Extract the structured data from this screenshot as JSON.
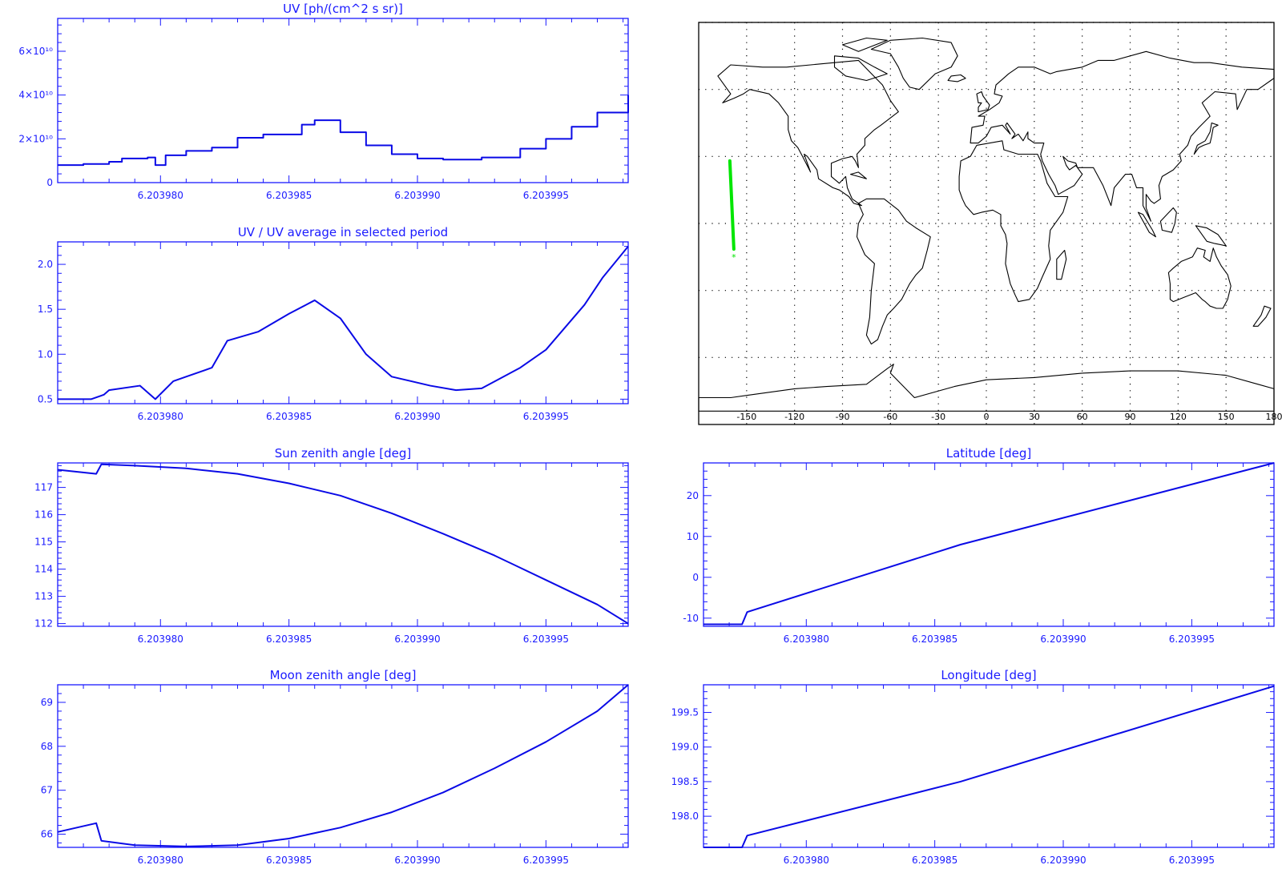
{
  "colors": {
    "axis": "#1a1aff",
    "line": "#0a0ae6",
    "track": "#00e600",
    "map": "#000000"
  },
  "x_ticks": [
    "6.203980",
    "6.203985",
    "6.203990",
    "6.203995"
  ],
  "x_tick_values": [
    6.20398,
    6.203985,
    6.20399,
    6.203995
  ],
  "chart_data": [
    {
      "id": "uv",
      "type": "line",
      "step": true,
      "title": "UV [ph/(cm^2 s sr)]",
      "xlim": [
        6.203976,
        6.2039982
      ],
      "ylim": [
        0,
        75000000000.0
      ],
      "y_ticks": [
        0,
        20000000000.0,
        40000000000.0,
        60000000000.0
      ],
      "y_tick_labels": [
        "0",
        "2×10¹⁰",
        "4×10¹⁰",
        "6×10¹⁰"
      ],
      "series": [
        {
          "x": [
            6.203976,
            6.203977,
            6.203978,
            6.2039785,
            6.2039795,
            6.2039798,
            6.2039802,
            6.203981,
            6.203982,
            6.203983,
            6.203984,
            6.2039855,
            6.203986,
            6.203987,
            6.203988,
            6.203989,
            6.20399,
            6.203991,
            6.2039925,
            6.203994,
            6.203995,
            6.203996,
            6.203997,
            6.2039982
          ],
          "y": [
            8000000000.0,
            8500000000.0,
            9500000000.0,
            11000000000.0,
            11500000000.0,
            8000000000.0,
            12500000000.0,
            14500000000.0,
            16000000000.0,
            20500000000.0,
            22000000000.0,
            26500000000.0,
            28500000000.0,
            23000000000.0,
            17000000000.0,
            13000000000.0,
            11000000000.0,
            10500000000.0,
            11500000000.0,
            15500000000.0,
            20000000000.0,
            25500000000.0,
            32000000000.0,
            40000000000.0
          ]
        }
      ]
    },
    {
      "id": "uv-ratio",
      "type": "line",
      "title": "UV / UV average in selected period",
      "xlim": [
        6.203976,
        6.2039982
      ],
      "ylim": [
        0.45,
        2.25
      ],
      "y_ticks": [
        0.5,
        1.0,
        1.5,
        2.0
      ],
      "y_tick_labels": [
        "0.5",
        "1.0",
        "1.5",
        "2.0"
      ],
      "series": [
        {
          "x": [
            6.203976,
            6.2039773,
            6.2039778,
            6.203978,
            6.2039792,
            6.2039798,
            6.2039805,
            6.203981,
            6.203982,
            6.2039826,
            6.2039832,
            6.2039838,
            6.203985,
            6.203986,
            6.203987,
            6.203988,
            6.203989,
            6.2039905,
            6.2039915,
            6.2039925,
            6.203994,
            6.203995,
            6.2039965,
            6.2039972,
            6.2039982
          ],
          "y": [
            0.5,
            0.5,
            0.55,
            0.6,
            0.65,
            0.5,
            0.7,
            0.75,
            0.85,
            1.15,
            1.2,
            1.25,
            1.45,
            1.6,
            1.4,
            1.0,
            0.75,
            0.65,
            0.6,
            0.62,
            0.85,
            1.05,
            1.55,
            1.85,
            2.2
          ]
        }
      ]
    },
    {
      "id": "sun-zenith",
      "type": "line",
      "title": "Sun zenith angle [deg]",
      "xlim": [
        6.203976,
        6.2039982
      ],
      "ylim": [
        111.9,
        117.9
      ],
      "y_ticks": [
        112,
        113,
        114,
        115,
        116,
        117
      ],
      "y_tick_labels": [
        "112",
        "113",
        "114",
        "115",
        "116",
        "117"
      ],
      "series": [
        {
          "x": [
            6.203976,
            6.2039775,
            6.2039777,
            6.203979,
            6.203981,
            6.203983,
            6.203985,
            6.203987,
            6.203989,
            6.203991,
            6.203993,
            6.203995,
            6.203997,
            6.2039982
          ],
          "y": [
            117.65,
            117.5,
            117.85,
            117.8,
            117.7,
            117.5,
            117.15,
            116.7,
            116.05,
            115.3,
            114.5,
            113.6,
            112.7,
            112.0
          ]
        }
      ]
    },
    {
      "id": "moon-zenith",
      "type": "line",
      "title": "Moon zenith angle [deg]",
      "xlim": [
        6.203976,
        6.2039982
      ],
      "ylim": [
        65.7,
        69.4
      ],
      "y_ticks": [
        66,
        67,
        68,
        69
      ],
      "y_tick_labels": [
        "66",
        "67",
        "68",
        "69"
      ],
      "series": [
        {
          "x": [
            6.203976,
            6.2039775,
            6.2039777,
            6.203979,
            6.203981,
            6.203983,
            6.203985,
            6.203987,
            6.203989,
            6.203991,
            6.203993,
            6.203995,
            6.203997,
            6.2039982
          ],
          "y": [
            66.05,
            66.25,
            65.85,
            65.75,
            65.72,
            65.75,
            65.9,
            66.15,
            66.5,
            66.95,
            67.5,
            68.1,
            68.8,
            69.4
          ]
        }
      ]
    },
    {
      "id": "latitude",
      "type": "line",
      "title": "Latitude [deg]",
      "xlim": [
        6.203976,
        6.2039982
      ],
      "ylim": [
        -12,
        28
      ],
      "y_ticks": [
        -10,
        0,
        10,
        20
      ],
      "y_tick_labels": [
        "-10",
        "0",
        "10",
        "20"
      ],
      "series": [
        {
          "x": [
            6.203976,
            6.2039775,
            6.2039777,
            6.203986,
            6.2039982
          ],
          "y": [
            -11.5,
            -11.5,
            -8.5,
            8.0,
            28.0
          ]
        }
      ]
    },
    {
      "id": "longitude",
      "type": "line",
      "title": "Longitude [deg]",
      "xlim": [
        6.203976,
        6.2039982
      ],
      "ylim": [
        197.55,
        199.9
      ],
      "y_ticks": [
        198.0,
        198.5,
        199.0,
        199.5
      ],
      "y_tick_labels": [
        "198.0",
        "198.5",
        "199.0",
        "199.5"
      ],
      "series": [
        {
          "x": [
            6.203976,
            6.2039775,
            6.2039777,
            6.203986,
            6.2039982
          ],
          "y": [
            197.55,
            197.55,
            197.72,
            198.5,
            199.88
          ]
        }
      ]
    }
  ],
  "map": {
    "lon_ticks": [
      "-150",
      "-120",
      "-90",
      "-60",
      "-30",
      "0",
      "30",
      "60",
      "90",
      "120",
      "150",
      "180"
    ],
    "lon_tick_values": [
      -150,
      -120,
      -90,
      -60,
      -30,
      0,
      30,
      60,
      90,
      120,
      150,
      180
    ],
    "lon_range": [
      -180,
      180
    ],
    "lat_range": [
      -90,
      90
    ],
    "track": {
      "lon": [
        -158,
        -160.5
      ],
      "lat": [
        -11.5,
        28
      ]
    },
    "track_marker": "*"
  }
}
